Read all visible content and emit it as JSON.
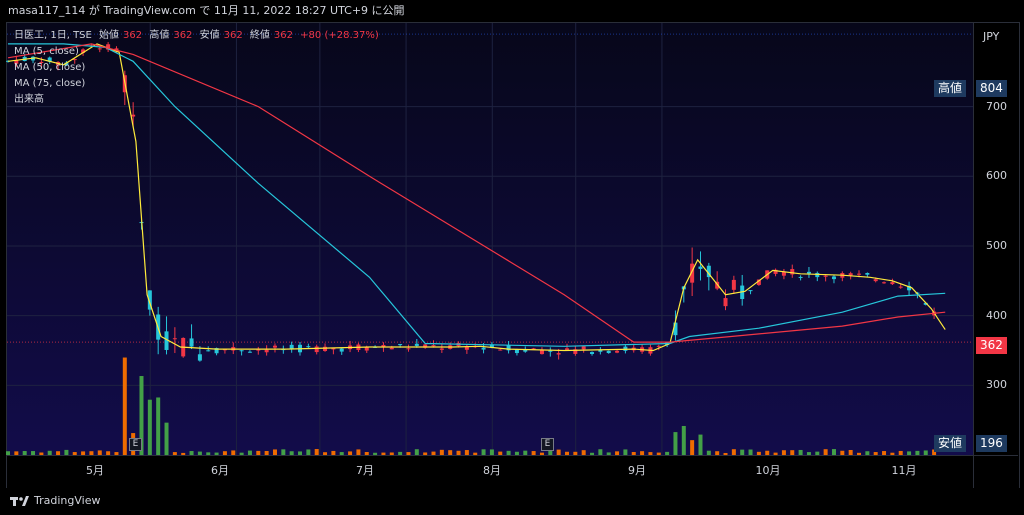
{
  "header": {
    "title": "masa117_114 が TradingView.com で 11月 11, 2022 18:27 UTC+9 に公開"
  },
  "legend": {
    "symbol": "日医工, 1日, TSE",
    "open_label": "始値",
    "open": "362",
    "high_label": "高値",
    "high": "362",
    "low_label": "安値",
    "low": "362",
    "close_label": "終値",
    "close": "362",
    "change": "+80 (+28.37%)",
    "ma5": "MA (5, close)",
    "ma50": "MA (50, close)",
    "ma75": "MA (75, close)",
    "volume": "出来高"
  },
  "axis": {
    "currency": "JPY"
  },
  "tags": {
    "high_label": "高値",
    "high_value": "804",
    "low_label": "安値",
    "low_value": "196",
    "last_value": "362"
  },
  "events": [
    "E",
    "E"
  ],
  "footer": {
    "brand": "TradingView"
  },
  "colors": {
    "up": "#26c6da",
    "down": "#f23645",
    "ma5": "#ffeb3b",
    "ma50": "#26c6da",
    "ma75": "#f23645",
    "vol_up": "#43a047",
    "vol_down": "#ef6c00"
  },
  "chart_data": {
    "type": "candlestick",
    "ylim": [
      196,
      804
    ],
    "yticks": [
      300,
      400,
      500,
      600,
      700
    ],
    "xticks": [
      "5月",
      "6月",
      "7月",
      "8月",
      "9月",
      "10月",
      "11月"
    ],
    "series_ma": [
      {
        "name": "MA (5, close)",
        "points": [
          [
            0,
            765
          ],
          [
            10,
            770
          ],
          [
            20,
            760
          ],
          [
            32,
            790
          ],
          [
            40,
            778
          ],
          [
            46,
            650
          ],
          [
            50,
            430
          ],
          [
            55,
            370
          ],
          [
            62,
            355
          ],
          [
            75,
            352
          ],
          [
            100,
            352
          ],
          [
            130,
            355
          ],
          [
            160,
            355
          ],
          [
            170,
            356
          ],
          [
            180,
            352
          ],
          [
            200,
            350
          ],
          [
            225,
            352
          ],
          [
            232,
            350
          ],
          [
            238,
            360
          ],
          [
            243,
            440
          ],
          [
            248,
            480
          ],
          [
            253,
            455
          ],
          [
            258,
            430
          ],
          [
            265,
            435
          ],
          [
            270,
            450
          ],
          [
            275,
            465
          ],
          [
            285,
            460
          ],
          [
            300,
            458
          ],
          [
            310,
            455
          ],
          [
            318,
            450
          ],
          [
            325,
            440
          ],
          [
            332,
            410
          ],
          [
            337,
            380
          ]
        ]
      },
      {
        "name": "MA (50, close)",
        "points": [
          [
            0,
            790
          ],
          [
            20,
            790
          ],
          [
            35,
            785
          ],
          [
            45,
            765
          ],
          [
            60,
            700
          ],
          [
            90,
            590
          ],
          [
            130,
            455
          ],
          [
            150,
            360
          ],
          [
            200,
            356
          ],
          [
            238,
            360
          ],
          [
            245,
            370
          ],
          [
            270,
            382
          ],
          [
            300,
            405
          ],
          [
            320,
            428
          ],
          [
            337,
            432
          ]
        ]
      },
      {
        "name": "MA (75, close)",
        "points": [
          [
            0,
            770
          ],
          [
            30,
            790
          ],
          [
            45,
            775
          ],
          [
            90,
            700
          ],
          [
            130,
            600
          ],
          [
            200,
            430
          ],
          [
            225,
            362
          ],
          [
            238,
            362
          ],
          [
            260,
            370
          ],
          [
            300,
            385
          ],
          [
            320,
            398
          ],
          [
            337,
            405
          ]
        ]
      }
    ]
  }
}
